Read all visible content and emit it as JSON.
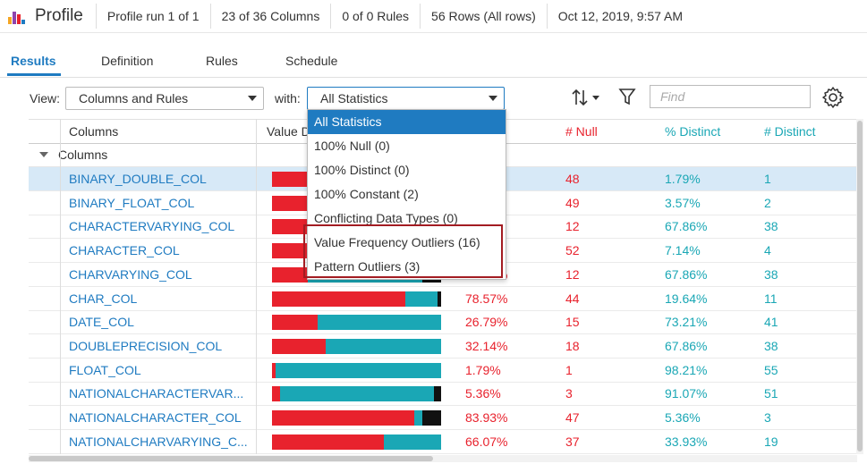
{
  "header": {
    "title": "Profile",
    "run": "Profile run 1 of 1",
    "columns": "23 of 36 Columns",
    "rules": "0 of 0 Rules",
    "rows": "56 Rows (All rows)",
    "timestamp": "Oct 12, 2019, 9:57 AM"
  },
  "tabs": [
    "Results",
    "Definition",
    "Rules",
    "Schedule"
  ],
  "filters": {
    "view_label": "View:",
    "view_value": "Columns and Rules",
    "with_label": "with:",
    "with_value": "All Statistics",
    "find_placeholder": "Find"
  },
  "dropdown": {
    "options": [
      "All Statistics",
      "100% Null (0)",
      "100% Distinct (0)",
      "100% Constant (2)",
      "Conflicting Data Types (0)",
      "Value Frequency Outliers (16)",
      "Pattern Outliers (3)"
    ],
    "selected": "All Statistics"
  },
  "table": {
    "headers": {
      "columns": "Columns",
      "value_distribution": "Value D",
      "null_count": "# Null",
      "pct_distinct": "% Distinct",
      "num_distinct": "# Distinct"
    },
    "group_label": "Columns",
    "rows": [
      {
        "name": "BINARY_DOUBLE_COL",
        "pct_null": "%",
        "null": "48",
        "pct_distinct": "1.79%",
        "distinct": "1",
        "selected": true,
        "bar": [
          0.86,
          0.14,
          0
        ]
      },
      {
        "name": "BINARY_FLOAT_COL",
        "pct_null": "",
        "null": "49",
        "pct_distinct": "3.57%",
        "distinct": "2",
        "bar": [
          0.88,
          0.12,
          0
        ]
      },
      {
        "name": "CHARACTERVARYING_COL",
        "pct_null": "%",
        "null": "12",
        "pct_distinct": "67.86%",
        "distinct": "38",
        "bar": [
          0.22,
          0.68,
          0.1
        ]
      },
      {
        "name": "CHARACTER_COL",
        "pct_null": "%",
        "null": "52",
        "pct_distinct": "7.14%",
        "distinct": "4",
        "bar": [
          0.93,
          0.07,
          0
        ]
      },
      {
        "name": "CHARVARYING_COL",
        "pct_null": "21.43%",
        "null": "12",
        "pct_distinct": "67.86%",
        "distinct": "38",
        "bar": [
          0.21,
          0.68,
          0.11
        ]
      },
      {
        "name": "CHAR_COL",
        "pct_null": "78.57%",
        "null": "44",
        "pct_distinct": "19.64%",
        "distinct": "11",
        "bar": [
          0.79,
          0.19,
          0.02
        ]
      },
      {
        "name": "DATE_COL",
        "pct_null": "26.79%",
        "null": "15",
        "pct_distinct": "73.21%",
        "distinct": "41",
        "bar": [
          0.27,
          0.73,
          0
        ]
      },
      {
        "name": "DOUBLEPRECISION_COL",
        "pct_null": "32.14%",
        "null": "18",
        "pct_distinct": "67.86%",
        "distinct": "38",
        "bar": [
          0.32,
          0.68,
          0
        ]
      },
      {
        "name": "FLOAT_COL",
        "pct_null": "1.79%",
        "null": "1",
        "pct_distinct": "98.21%",
        "distinct": "55",
        "bar": [
          0.02,
          0.98,
          0
        ]
      },
      {
        "name": "NATIONALCHARACTERVAR...",
        "pct_null": "5.36%",
        "null": "3",
        "pct_distinct": "91.07%",
        "distinct": "51",
        "bar": [
          0.05,
          0.91,
          0.04
        ]
      },
      {
        "name": "NATIONALCHARACTER_COL",
        "pct_null": "83.93%",
        "null": "47",
        "pct_distinct": "5.36%",
        "distinct": "3",
        "bar": [
          0.84,
          0.05,
          0.11
        ]
      },
      {
        "name": "NATIONALCHARVARYING_C...",
        "pct_null": "66.07%",
        "null": "37",
        "pct_distinct": "33.93%",
        "distinct": "19",
        "bar": [
          0.66,
          0.34,
          0
        ]
      }
    ]
  },
  "colors": {
    "accent": "#1f7bc1",
    "null_red": "#e8222d",
    "distinct_teal": "#1aa7b5",
    "other_black": "#111111",
    "highlight_box": "#a31c22"
  },
  "icons": [
    "profile-logo-icon",
    "sort-icon",
    "filter-funnel-icon",
    "settings-gear-icon",
    "dropdown-caret-icon",
    "collapse-triangle-icon"
  ]
}
